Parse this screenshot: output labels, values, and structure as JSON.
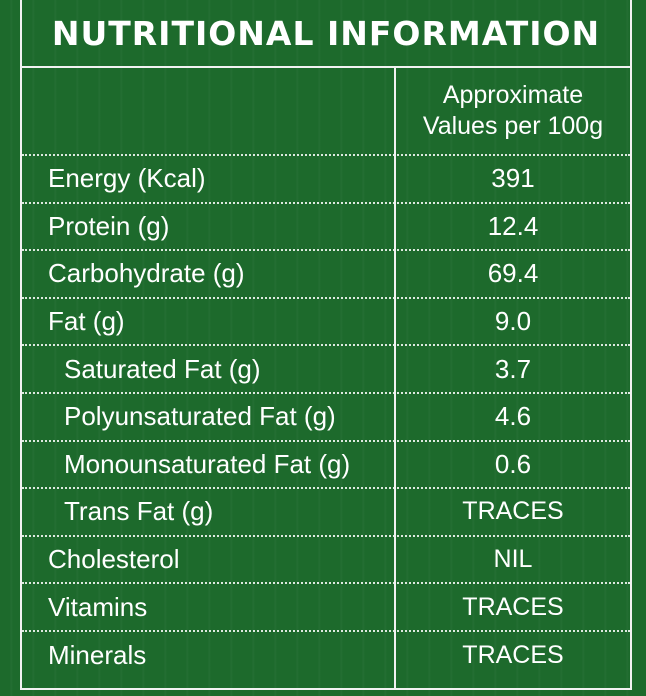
{
  "title": "NUTRITIONAL INFORMATION",
  "header": {
    "line1": "Approximate",
    "line2": "Values per 100g"
  },
  "rows": [
    {
      "label": "Energy (Kcal)",
      "value": "391"
    },
    {
      "label": "Protein (g)",
      "value": "12.4"
    },
    {
      "label": "Carbohydrate (g)",
      "value": "69.4"
    },
    {
      "label": "Fat (g)",
      "value": "9.0"
    },
    {
      "label": "Saturated Fat (g)",
      "value": "3.7"
    },
    {
      "label": "Polyunsaturated Fat (g)",
      "value": "4.6"
    },
    {
      "label": "Monounsaturated Fat (g)",
      "value": "0.6"
    },
    {
      "label": "Trans Fat (g)",
      "value": "TRACES"
    },
    {
      "label": "Cholesterol",
      "value": "NIL"
    },
    {
      "label": "Vitamins",
      "value": "TRACES"
    },
    {
      "label": "Minerals",
      "value": "TRACES"
    }
  ],
  "colors": {
    "background": "#1d6a2c",
    "text": "#ffffff",
    "border": "#f2f2f2"
  }
}
